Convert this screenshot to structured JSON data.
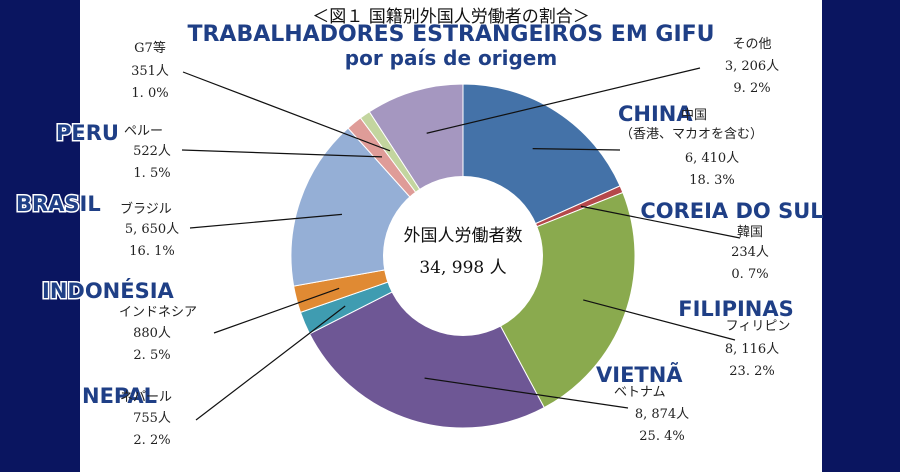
{
  "header": {
    "jp_title": "＜図１ 国籍別外国人労働者の割合＞",
    "pt_title_line1": "TRABALHADORES ESTRANGEIROS EM GIFU",
    "pt_title_line2": "por país de origem"
  },
  "center": {
    "label": "外国人労働者数",
    "total": "34, 998 人"
  },
  "chart_data": {
    "type": "pie",
    "variant": "donut",
    "title": "＜図１ 国籍別外国人労働者の割合＞",
    "total_label": "外国人労働者数",
    "total": 34998,
    "slices": [
      {
        "key": "china",
        "name_jp": "中国",
        "note_jp": "（香港、マカオを含む）",
        "name_pt": "CHINA",
        "count": 6410,
        "count_label": "6, 410人",
        "percent": 18.3,
        "percent_label": "18. 3%",
        "color": "#4472a8"
      },
      {
        "key": "korea",
        "name_jp": "韓国",
        "name_pt": "COREIA DO SUL",
        "count": 234,
        "count_label": "234人",
        "percent": 0.7,
        "percent_label": "0. 7%",
        "color": "#b5484b"
      },
      {
        "key": "philippines",
        "name_jp": "フィリピン",
        "name_pt": "FILIPINAS",
        "count": 8116,
        "count_label": "8, 116人",
        "percent": 23.2,
        "percent_label": "23. 2%",
        "color": "#8aaa4e"
      },
      {
        "key": "vietnam",
        "name_jp": "ベトナム",
        "name_pt": "VIETNÃ",
        "count": 8874,
        "count_label": "8, 874人",
        "percent": 25.4,
        "percent_label": "25. 4%",
        "color": "#6e5795"
      },
      {
        "key": "nepal",
        "name_jp": "ネパール",
        "name_pt": "NEPAL",
        "count": 755,
        "count_label": "755人",
        "percent": 2.2,
        "percent_label": "2. 2%",
        "color": "#3f9cb1"
      },
      {
        "key": "indonesia",
        "name_jp": "インドネシア",
        "name_pt": "INDONÉSIA",
        "count": 880,
        "count_label": "880人",
        "percent": 2.5,
        "percent_label": "2. 5%",
        "color": "#e08a33"
      },
      {
        "key": "brazil",
        "name_jp": "ブラジル",
        "name_pt": "BRASIL",
        "count": 5650,
        "count_label": "5, 650人",
        "percent": 16.1,
        "percent_label": "16. 1%",
        "color": "#95afd6"
      },
      {
        "key": "peru",
        "name_jp": "ペルー",
        "name_pt": "PERU",
        "count": 522,
        "count_label": "522人",
        "percent": 1.5,
        "percent_label": "1. 5%",
        "color": "#df9c98"
      },
      {
        "key": "g7",
        "name_jp": "G7等",
        "name_pt": "",
        "count": 351,
        "count_label": "351人",
        "percent": 1.0,
        "percent_label": "1. 0%",
        "color": "#c3d59f"
      },
      {
        "key": "other",
        "name_jp": "その他",
        "name_pt": "",
        "count": 3206,
        "count_label": "3, 206人",
        "percent": 9.2,
        "percent_label": "9. 2%",
        "color": "#a597c0"
      }
    ]
  }
}
